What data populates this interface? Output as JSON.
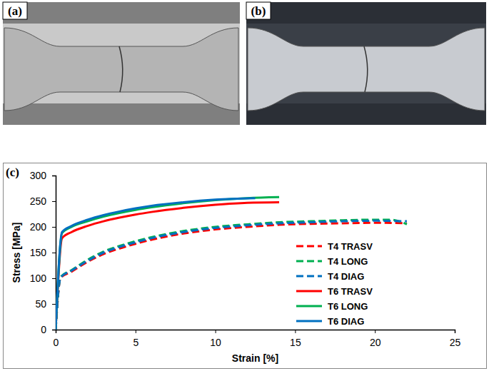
{
  "panels": [
    {
      "label": "(a)"
    },
    {
      "label": "(b)"
    }
  ],
  "chart_data": {
    "type": "line",
    "panel_label": "(c)",
    "xlabel": "Strain [%]",
    "ylabel": "Stress [MPa]",
    "xlim": [
      0,
      25
    ],
    "ylim": [
      0,
      300
    ],
    "xticks": [
      0,
      5,
      10,
      15,
      20,
      25
    ],
    "yticks": [
      0,
      50,
      100,
      150,
      200,
      250,
      300
    ],
    "grid": false,
    "legend": "right",
    "series": [
      {
        "name": "T4 TRASV",
        "color": "#ff0000",
        "line_style": "dashed",
        "x": [
          0,
          0.3,
          1,
          2,
          3,
          4,
          5,
          6,
          8,
          10,
          12,
          14,
          16,
          18,
          20,
          22
        ],
        "values": [
          0,
          100,
          113,
          132,
          147,
          158,
          167,
          175,
          187,
          195,
          200,
          204,
          206,
          207,
          208,
          207
        ]
      },
      {
        "name": "T4 LONG",
        "color": "#00b050",
        "line_style": "dashed",
        "x": [
          0,
          0.3,
          1,
          2,
          3,
          4,
          5,
          6,
          8,
          10,
          12,
          14,
          16,
          18,
          20,
          21,
          22
        ],
        "values": [
          0,
          102,
          116,
          136,
          152,
          163,
          172,
          180,
          192,
          200,
          205,
          209,
          211,
          213,
          214,
          214,
          205
        ]
      },
      {
        "name": "T4 DIAG",
        "color": "#0070c0",
        "line_style": "dashed",
        "x": [
          0,
          0.3,
          1,
          2,
          3,
          4,
          5,
          6,
          8,
          10,
          12,
          14,
          16,
          18,
          20,
          22
        ],
        "values": [
          0,
          101,
          115,
          134,
          150,
          161,
          170,
          178,
          190,
          198,
          203,
          207,
          209,
          211,
          212,
          211
        ]
      },
      {
        "name": "T6 TRASV",
        "color": "#ff0000",
        "line_style": "solid",
        "x": [
          0,
          0.4,
          1,
          2,
          3,
          4,
          5,
          6,
          8,
          10,
          12,
          14
        ],
        "values": [
          0,
          178,
          190,
          202,
          211,
          218,
          224,
          229,
          237,
          243,
          247,
          248
        ]
      },
      {
        "name": "T6 LONG",
        "color": "#00b050",
        "line_style": "solid",
        "x": [
          0,
          0.4,
          1,
          2,
          3,
          4,
          5,
          6,
          8,
          10,
          12,
          14
        ],
        "values": [
          0,
          188,
          200,
          211,
          220,
          227,
          233,
          238,
          246,
          252,
          256,
          258
        ]
      },
      {
        "name": "T6 DIAG",
        "color": "#0070c0",
        "line_style": "solid",
        "x": [
          0,
          0.4,
          1,
          2,
          3,
          4,
          5,
          6,
          8,
          10,
          12.5
        ],
        "values": [
          0,
          190,
          202,
          214,
          223,
          230,
          236,
          241,
          248,
          253,
          256
        ]
      }
    ]
  }
}
